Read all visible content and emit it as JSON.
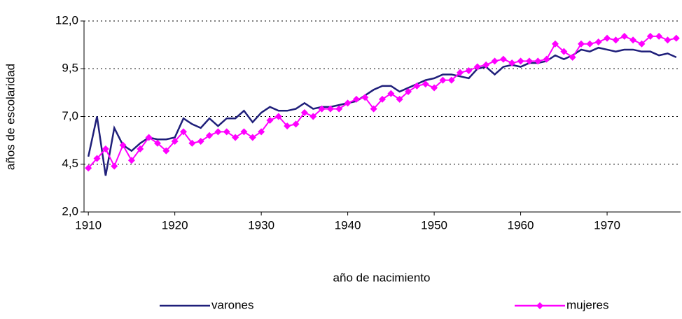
{
  "chart_data": {
    "type": "line",
    "ylabel": "años de escolaridad",
    "xlabel": "año de nacimiento",
    "x": [
      1910,
      1911,
      1912,
      1913,
      1914,
      1915,
      1916,
      1917,
      1918,
      1919,
      1920,
      1921,
      1922,
      1923,
      1924,
      1925,
      1926,
      1927,
      1928,
      1929,
      1930,
      1931,
      1932,
      1933,
      1934,
      1935,
      1936,
      1937,
      1938,
      1939,
      1940,
      1941,
      1942,
      1943,
      1944,
      1945,
      1946,
      1947,
      1948,
      1949,
      1950,
      1951,
      1952,
      1953,
      1954,
      1955,
      1956,
      1957,
      1958,
      1959,
      1960,
      1961,
      1962,
      1963,
      1964,
      1965,
      1966,
      1967,
      1968,
      1969,
      1970,
      1971,
      1972,
      1973,
      1974,
      1975,
      1976,
      1977,
      1978
    ],
    "series": [
      {
        "name": "varones",
        "color": "#1f1f7a",
        "values": [
          4.9,
          7.0,
          3.9,
          6.4,
          5.5,
          5.2,
          5.6,
          5.9,
          5.8,
          5.8,
          5.9,
          6.9,
          6.6,
          6.4,
          6.9,
          6.5,
          6.9,
          6.9,
          7.3,
          6.7,
          7.2,
          7.5,
          7.3,
          7.3,
          7.4,
          7.7,
          7.4,
          7.5,
          7.5,
          7.6,
          7.7,
          7.8,
          8.1,
          8.4,
          8.6,
          8.6,
          8.3,
          8.5,
          8.7,
          8.9,
          9.0,
          9.2,
          9.2,
          9.1,
          9.0,
          9.5,
          9.6,
          9.2,
          9.6,
          9.7,
          9.6,
          9.8,
          9.8,
          9.9,
          10.2,
          10.0,
          10.2,
          10.5,
          10.4,
          10.6,
          10.5,
          10.4,
          10.5,
          10.5,
          10.4,
          10.4,
          10.2,
          10.3,
          10.1
        ]
      },
      {
        "name": "mujeres",
        "color": "#ff00ff",
        "values": [
          4.3,
          4.8,
          5.3,
          4.4,
          5.5,
          4.7,
          5.3,
          5.9,
          5.6,
          5.2,
          5.7,
          6.2,
          5.6,
          5.7,
          6.0,
          6.2,
          6.2,
          5.9,
          6.2,
          5.9,
          6.2,
          6.8,
          7.0,
          6.5,
          6.6,
          7.2,
          7.0,
          7.4,
          7.4,
          7.4,
          7.7,
          7.9,
          8.0,
          7.4,
          7.9,
          8.2,
          7.9,
          8.3,
          8.6,
          8.7,
          8.5,
          8.9,
          8.9,
          9.3,
          9.4,
          9.6,
          9.7,
          9.9,
          10.0,
          9.8,
          9.9,
          9.9,
          9.9,
          10.0,
          10.8,
          10.4,
          10.1,
          10.8,
          10.8,
          10.9,
          11.1,
          11.0,
          11.2,
          11.0,
          10.8,
          11.2,
          11.2,
          11.0,
          11.1
        ]
      }
    ],
    "xlim": [
      1909.5,
      1978.5
    ],
    "xticks": [
      1910,
      1920,
      1930,
      1940,
      1950,
      1960,
      1970
    ],
    "ylim": [
      2,
      12
    ],
    "yticks": [
      {
        "value": 2,
        "label": "2,0"
      },
      {
        "value": 4.5,
        "label": "4,5"
      },
      {
        "value": 7,
        "label": "7,0"
      },
      {
        "value": 9.5,
        "label": "9,5"
      },
      {
        "value": 12,
        "label": "12,0"
      }
    ],
    "grid": true
  }
}
